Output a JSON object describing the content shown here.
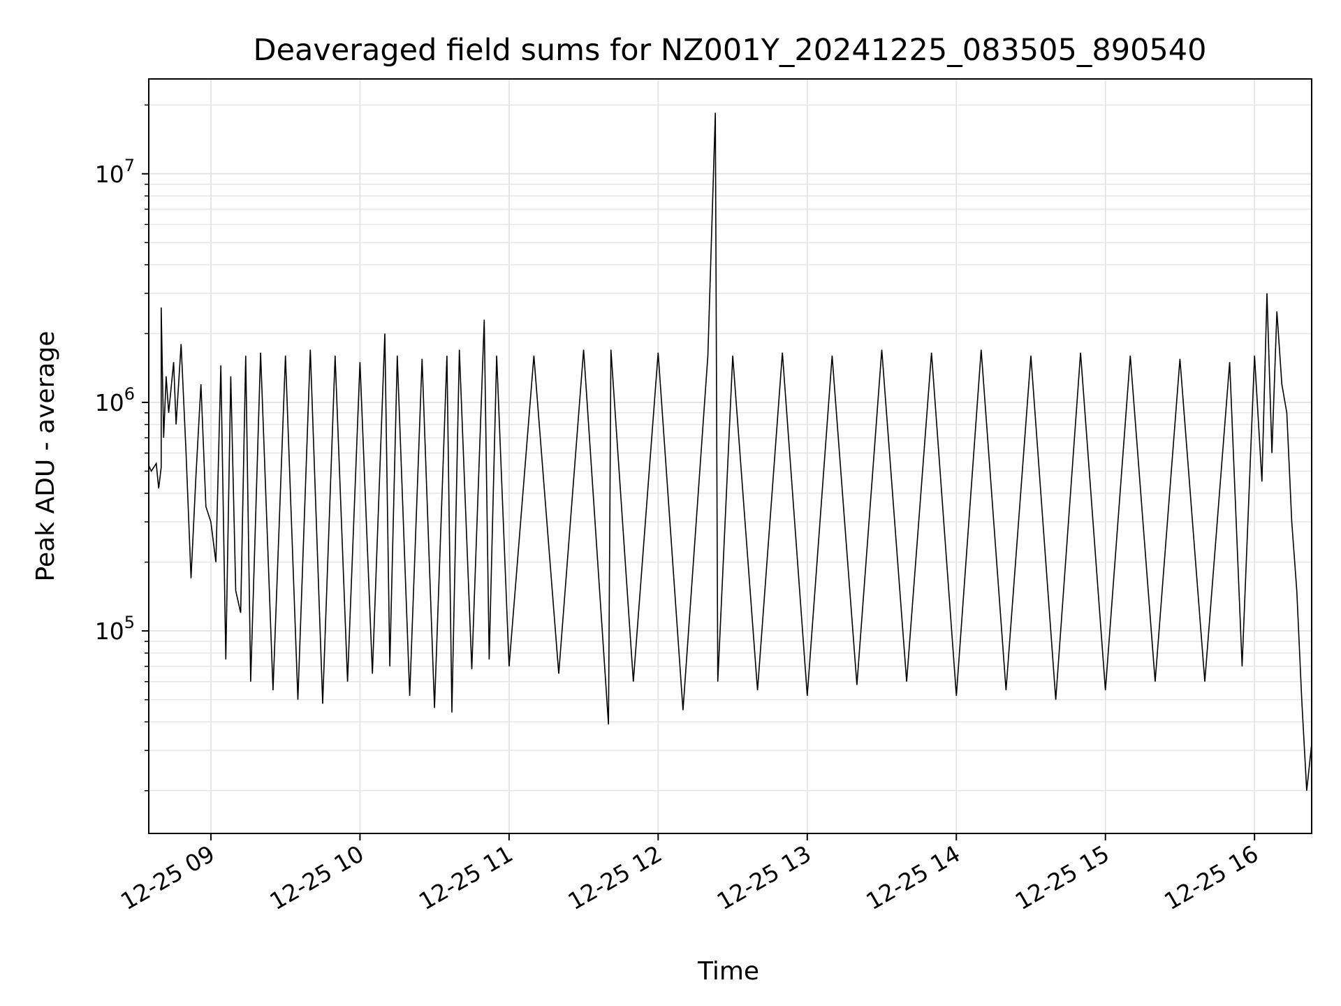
{
  "chart_data": {
    "type": "line",
    "title": "Deaveraged field sums for NZ001Y_20241225_083505_890540",
    "xlabel": "Time",
    "ylabel": "Peak ADU - average",
    "yscale": "log",
    "grid": true,
    "legend": "none",
    "line_color": "#000000",
    "x_ticks": [
      "12-25 09",
      "12-25 10",
      "12-25 11",
      "12-25 12",
      "12-25 13",
      "12-25 14",
      "12-25 15",
      "12-25 16"
    ],
    "x_tick_rotation_deg": -30,
    "y_ticks": [
      {
        "value": 100000,
        "base": "10",
        "exp": "5"
      },
      {
        "value": 1000000,
        "base": "10",
        "exp": "6"
      },
      {
        "value": 10000000,
        "base": "10",
        "exp": "7"
      }
    ],
    "xlim": [
      "2024-12-25 08:35",
      "2024-12-25 16:23"
    ],
    "ylim": [
      13000,
      26000000
    ],
    "series": [
      {
        "x": [
          "2024-12-25 08:35",
          "2024-12-25 08:36",
          "2024-12-25 08:38",
          "2024-12-25 08:39",
          "2024-12-25 08:40",
          "2024-12-25 08:40",
          "2024-12-25 08:41",
          "2024-12-25 08:42",
          "2024-12-25 08:43",
          "2024-12-25 08:45",
          "2024-12-25 08:46",
          "2024-12-25 08:48",
          "2024-12-25 08:50",
          "2024-12-25 08:52",
          "2024-12-25 08:54",
          "2024-12-25 08:56",
          "2024-12-25 08:58",
          "2024-12-25 09:00",
          "2024-12-25 09:02",
          "2024-12-25 09:04",
          "2024-12-25 09:06",
          "2024-12-25 09:08",
          "2024-12-25 09:10",
          "2024-12-25 09:12",
          "2024-12-25 09:14",
          "2024-12-25 09:16",
          "2024-12-25 09:20",
          "2024-12-25 09:25",
          "2024-12-25 09:30",
          "2024-12-25 09:35",
          "2024-12-25 09:40",
          "2024-12-25 09:45",
          "2024-12-25 09:50",
          "2024-12-25 09:55",
          "2024-12-25 10:00",
          "2024-12-25 10:05",
          "2024-12-25 10:10",
          "2024-12-25 10:12",
          "2024-12-25 10:15",
          "2024-12-25 10:20",
          "2024-12-25 10:25",
          "2024-12-25 10:30",
          "2024-12-25 10:35",
          "2024-12-25 10:37",
          "2024-12-25 10:40",
          "2024-12-25 10:45",
          "2024-12-25 10:50",
          "2024-12-25 10:52",
          "2024-12-25 10:55",
          "2024-12-25 11:00",
          "2024-12-25 11:10",
          "2024-12-25 11:20",
          "2024-12-25 11:30",
          "2024-12-25 11:40",
          "2024-12-25 11:41",
          "2024-12-25 11:50",
          "2024-12-25 12:00",
          "2024-12-25 12:10",
          "2024-12-25 12:20",
          "2024-12-25 12:23",
          "2024-12-25 12:24",
          "2024-12-25 12:30",
          "2024-12-25 12:40",
          "2024-12-25 12:50",
          "2024-12-25 13:00",
          "2024-12-25 13:10",
          "2024-12-25 13:20",
          "2024-12-25 13:30",
          "2024-12-25 13:40",
          "2024-12-25 13:50",
          "2024-12-25 14:00",
          "2024-12-25 14:10",
          "2024-12-25 14:20",
          "2024-12-25 14:30",
          "2024-12-25 14:40",
          "2024-12-25 14:50",
          "2024-12-25 15:00",
          "2024-12-25 15:10",
          "2024-12-25 15:20",
          "2024-12-25 15:30",
          "2024-12-25 15:40",
          "2024-12-25 15:50",
          "2024-12-25 15:55",
          "2024-12-25 16:00",
          "2024-12-25 16:03",
          "2024-12-25 16:05",
          "2024-12-25 16:07",
          "2024-12-25 16:09",
          "2024-12-25 16:11",
          "2024-12-25 16:13",
          "2024-12-25 16:15",
          "2024-12-25 16:17",
          "2024-12-25 16:19",
          "2024-12-25 16:21",
          "2024-12-25 16:23"
        ],
        "y": [
          530000,
          500000,
          540000,
          420000,
          520000,
          2600000,
          700000,
          1300000,
          900000,
          1500000,
          800000,
          1800000,
          600000,
          170000,
          480000,
          1200000,
          350000,
          300000,
          200000,
          1450000,
          75000,
          1300000,
          150000,
          120000,
          1600000,
          60000,
          1650000,
          55000,
          1600000,
          50000,
          1700000,
          48000,
          1600000,
          60000,
          1500000,
          65000,
          2000000,
          70000,
          1600000,
          52000,
          1550000,
          46000,
          1600000,
          44000,
          1700000,
          68000,
          2300000,
          75000,
          1600000,
          70000,
          1600000,
          65000,
          1700000,
          39000,
          1700000,
          60000,
          1650000,
          45000,
          1600000,
          18500000,
          60000,
          1600000,
          55000,
          1650000,
          52000,
          1600000,
          58000,
          1700000,
          60000,
          1650000,
          52000,
          1700000,
          55000,
          1600000,
          50000,
          1650000,
          55000,
          1600000,
          60000,
          1550000,
          60000,
          1500000,
          70000,
          1600000,
          450000,
          3000000,
          600000,
          2500000,
          1200000,
          900000,
          300000,
          150000,
          50000,
          20000,
          32000
        ]
      }
    ]
  }
}
